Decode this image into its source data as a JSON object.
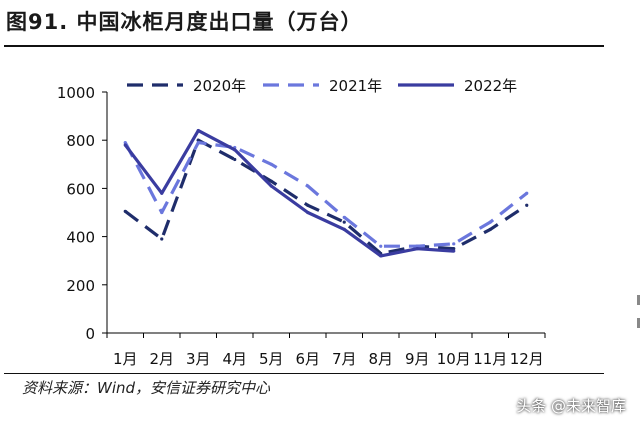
{
  "header": {
    "figure_title": "图91. 中国冰柜月度出口量（万台）"
  },
  "footer": {
    "source_note": "资料来源：Wind，安信证券研究中心",
    "watermark": "头条 @未来智库"
  },
  "chart_data": {
    "type": "line",
    "title": "图91. 中国冰柜月度出口量（万台）",
    "xlabel": "",
    "ylabel": "",
    "categories": [
      "1月",
      "2月",
      "3月",
      "4月",
      "5月",
      "6月",
      "7月",
      "8月",
      "9月",
      "10月",
      "11月",
      "12月"
    ],
    "ylim": [
      0,
      1000
    ],
    "yticks": [
      0,
      200,
      400,
      600,
      800,
      1000
    ],
    "grid": false,
    "legend_position": "top",
    "series": [
      {
        "name": "2020年",
        "color": "#1f2d6b",
        "style": "dashed",
        "values": [
          505,
          390,
          800,
          720,
          630,
          530,
          460,
          330,
          360,
          350,
          430,
          530
        ]
      },
      {
        "name": "2021年",
        "color": "#6b77dd",
        "style": "dashed",
        "values": [
          790,
          500,
          790,
          770,
          700,
          610,
          480,
          360,
          360,
          370,
          460,
          580
        ]
      },
      {
        "name": "2022年",
        "color": "#3a3ca0",
        "style": "solid",
        "values": [
          780,
          580,
          840,
          760,
          610,
          500,
          430,
          320,
          350,
          340,
          null,
          null
        ]
      }
    ]
  }
}
